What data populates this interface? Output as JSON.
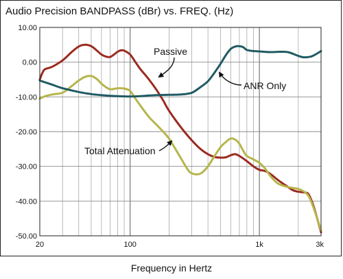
{
  "chart_data": {
    "type": "line",
    "title": "Audio Precision BANDPASS (dBr) vs. FREQ. (Hz)",
    "xlabel": "Frequency in Hertz",
    "ylabel": "",
    "x_scale": "log",
    "xlim": [
      20,
      3000
    ],
    "ylim": [
      -50,
      10
    ],
    "grid": true,
    "y_ticks": [
      {
        "value": 10,
        "label": "10.00"
      },
      {
        "value": 0,
        "label": "0.00"
      },
      {
        "value": -10,
        "label": "-10.00"
      },
      {
        "value": -20,
        "label": "-20.00"
      },
      {
        "value": -30,
        "label": "-30.00"
      },
      {
        "value": -40,
        "label": "-40.00"
      },
      {
        "value": -50,
        "label": "-50.00"
      }
    ],
    "x_ticks": [
      {
        "value": 20,
        "label": "20"
      },
      {
        "value": 100,
        "label": "100"
      },
      {
        "value": 1000,
        "label": "1k"
      },
      {
        "value": 3000,
        "label": "3k"
      }
    ],
    "series": [
      {
        "name": "Passive",
        "color": "#9b2a1f",
        "points": [
          [
            20,
            -5
          ],
          [
            21,
            -3
          ],
          [
            22,
            -2
          ],
          [
            25,
            -1.3
          ],
          [
            30,
            0.5
          ],
          [
            35,
            2.8
          ],
          [
            40,
            4.5
          ],
          [
            45,
            5
          ],
          [
            50,
            4.6
          ],
          [
            55,
            3.4
          ],
          [
            60,
            2.2
          ],
          [
            65,
            1.6
          ],
          [
            70,
            1.5
          ],
          [
            75,
            2.2
          ],
          [
            80,
            3
          ],
          [
            85,
            3.4
          ],
          [
            90,
            3.3
          ],
          [
            100,
            2.2
          ],
          [
            110,
            0
          ],
          [
            120,
            -2
          ],
          [
            140,
            -5
          ],
          [
            160,
            -8
          ],
          [
            180,
            -11
          ],
          [
            200,
            -14
          ],
          [
            250,
            -19
          ],
          [
            300,
            -22.5
          ],
          [
            350,
            -25
          ],
          [
            400,
            -26.5
          ],
          [
            450,
            -27.3
          ],
          [
            500,
            -27.5
          ],
          [
            550,
            -27.4
          ],
          [
            600,
            -26.8
          ],
          [
            650,
            -26.5
          ],
          [
            700,
            -27
          ],
          [
            800,
            -28.5
          ],
          [
            900,
            -30
          ],
          [
            1000,
            -31
          ],
          [
            1100,
            -31.3
          ],
          [
            1200,
            -32
          ],
          [
            1400,
            -34
          ],
          [
            1600,
            -35.5
          ],
          [
            1800,
            -36.8
          ],
          [
            2000,
            -37.3
          ],
          [
            2200,
            -37.5
          ],
          [
            2400,
            -38
          ],
          [
            2600,
            -41
          ],
          [
            2800,
            -45
          ],
          [
            3000,
            -49
          ]
        ]
      },
      {
        "name": "Total Attenuation",
        "color": "#b6b54a",
        "points": [
          [
            20,
            -10.5
          ],
          [
            22,
            -9.8
          ],
          [
            25,
            -9.3
          ],
          [
            30,
            -8.8
          ],
          [
            35,
            -7
          ],
          [
            40,
            -5.3
          ],
          [
            45,
            -4.2
          ],
          [
            50,
            -4
          ],
          [
            55,
            -4.8
          ],
          [
            60,
            -6.2
          ],
          [
            65,
            -7.2
          ],
          [
            70,
            -7.8
          ],
          [
            75,
            -7.7
          ],
          [
            80,
            -7.5
          ],
          [
            90,
            -7.6
          ],
          [
            100,
            -8.3
          ],
          [
            110,
            -10.5
          ],
          [
            120,
            -12.5
          ],
          [
            140,
            -15.8
          ],
          [
            160,
            -18
          ],
          [
            180,
            -20
          ],
          [
            200,
            -22
          ],
          [
            220,
            -24.5
          ],
          [
            250,
            -28
          ],
          [
            280,
            -31
          ],
          [
            300,
            -32
          ],
          [
            330,
            -32.3
          ],
          [
            360,
            -31.8
          ],
          [
            400,
            -30
          ],
          [
            450,
            -27
          ],
          [
            500,
            -24.5
          ],
          [
            550,
            -23
          ],
          [
            600,
            -22
          ],
          [
            650,
            -22.3
          ],
          [
            700,
            -23.5
          ],
          [
            750,
            -25.5
          ],
          [
            800,
            -27
          ],
          [
            900,
            -28
          ],
          [
            1000,
            -29
          ],
          [
            1100,
            -30.5
          ],
          [
            1200,
            -32.5
          ],
          [
            1300,
            -34
          ],
          [
            1400,
            -35
          ],
          [
            1600,
            -35.8
          ],
          [
            1800,
            -36.2
          ],
          [
            2000,
            -36.5
          ],
          [
            2200,
            -37.2
          ],
          [
            2400,
            -38.5
          ],
          [
            2600,
            -41.5
          ],
          [
            2800,
            -45
          ],
          [
            3000,
            -48.5
          ]
        ]
      },
      {
        "name": "ANR Only",
        "color": "#1f5a63",
        "points": [
          [
            20,
            -5.3
          ],
          [
            25,
            -6.5
          ],
          [
            30,
            -7.5
          ],
          [
            40,
            -8.6
          ],
          [
            50,
            -9.2
          ],
          [
            60,
            -9.5
          ],
          [
            70,
            -9.7
          ],
          [
            80,
            -9.8
          ],
          [
            100,
            -9.9
          ],
          [
            120,
            -9.8
          ],
          [
            140,
            -9.6
          ],
          [
            160,
            -9.5
          ],
          [
            200,
            -9.4
          ],
          [
            250,
            -9.3
          ],
          [
            300,
            -8.8
          ],
          [
            350,
            -7.2
          ],
          [
            400,
            -5.5
          ],
          [
            450,
            -3
          ],
          [
            500,
            -0.5
          ],
          [
            550,
            2
          ],
          [
            600,
            3.8
          ],
          [
            650,
            4.5
          ],
          [
            700,
            4.6
          ],
          [
            750,
            4.3
          ],
          [
            800,
            3.5
          ],
          [
            900,
            3.2
          ],
          [
            1000,
            3.1
          ],
          [
            1200,
            2.9
          ],
          [
            1500,
            3
          ],
          [
            1700,
            2.8
          ],
          [
            2000,
            1.8
          ],
          [
            2200,
            1.4
          ],
          [
            2500,
            1.6
          ],
          [
            2800,
            2.5
          ],
          [
            3000,
            3.2
          ]
        ]
      }
    ],
    "annotations": [
      {
        "text": "Passive",
        "series": "Passive"
      },
      {
        "text": "ANR Only",
        "series": "ANR Only"
      },
      {
        "text": "Total Attenuation",
        "series": "Total Attenuation"
      }
    ]
  }
}
